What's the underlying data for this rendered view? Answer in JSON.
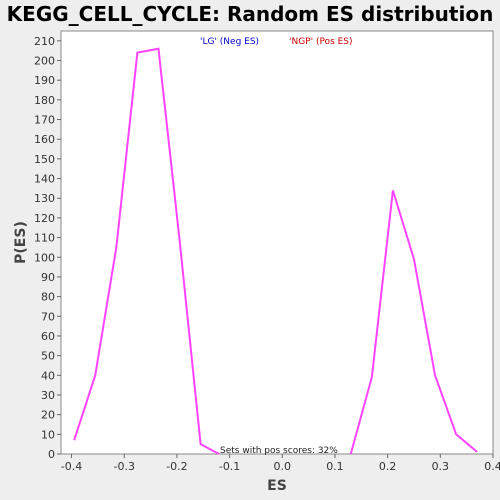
{
  "chart_data": {
    "type": "line",
    "title": "KEGG_CELL_CYCLE: Random ES distribution",
    "xlabel": "ES",
    "ylabel": "P(ES)",
    "xlim": [
      -0.42,
      0.4
    ],
    "ylim": [
      0,
      215
    ],
    "x_ticks": [
      -0.4,
      -0.3,
      -0.2,
      -0.1,
      0.0,
      0.1,
      0.2,
      0.3,
      0.4
    ],
    "x_tick_labels": [
      "-0.4",
      "-0.3",
      "-0.2",
      "-0.1",
      "0.0",
      "0.1",
      "0.2",
      "0.3",
      "0.4"
    ],
    "y_ticks": [
      0,
      10,
      20,
      30,
      40,
      50,
      60,
      70,
      80,
      90,
      100,
      110,
      120,
      130,
      140,
      150,
      160,
      170,
      180,
      190,
      200,
      210
    ],
    "y_tick_labels": [
      "0",
      "10",
      "20",
      "30",
      "40",
      "50",
      "60",
      "70",
      "80",
      "90",
      "100",
      "110",
      "120",
      "130",
      "140",
      "150",
      "160",
      "170",
      "180",
      "190",
      "200",
      "210"
    ],
    "grid": false,
    "legend": [
      {
        "label": "'LG' (Neg ES)",
        "color": "#0000cc"
      },
      {
        "label": "'NGP' (Pos ES)",
        "color": "#cc0000"
      }
    ],
    "annotation": "Sets with pos scores: 32%",
    "series": [
      {
        "color": "#ff44ff",
        "x": [
          -0.395,
          -0.355,
          -0.315,
          -0.275,
          -0.235,
          -0.195,
          -0.155,
          -0.12
        ],
        "y": [
          7,
          40,
          105,
          204,
          206,
          109,
          5,
          0
        ]
      },
      {
        "color": "#ff44ff",
        "x": [
          0.13,
          0.17,
          0.21,
          0.25,
          0.29,
          0.33,
          0.37
        ],
        "y": [
          0,
          39,
          134,
          99,
          40,
          10,
          1
        ]
      }
    ]
  }
}
